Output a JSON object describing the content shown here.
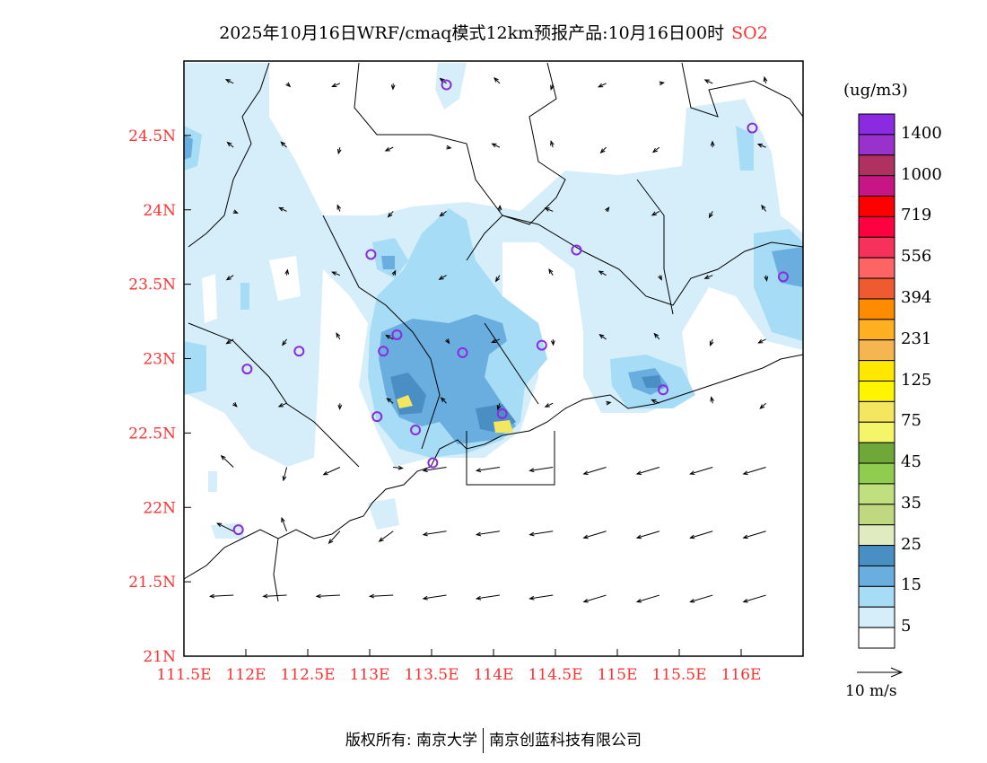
{
  "title": {
    "main": "2025年10月16日WRF/cmaq模式12km预报产品:10月16日00时",
    "species": "SO2"
  },
  "chart_data": {
    "type": "heatmap",
    "title": "2025年10月16日WRF/cmaq模式12km预报产品:10月16日00时 SO2",
    "x_ticks": [
      "111.5E",
      "112E",
      "112.5E",
      "113E",
      "113.5E",
      "114E",
      "114.5E",
      "115E",
      "115.5E",
      "116E"
    ],
    "y_ticks": [
      "21N",
      "21.5N",
      "22N",
      "22.5N",
      "23N",
      "23.5N",
      "24N",
      "24.5N"
    ],
    "xlim": [
      111.5,
      116.5
    ],
    "ylim": [
      21,
      25
    ],
    "colorbar": {
      "unit": "(ug/m3)",
      "labels": [
        "1400",
        "1000",
        "719",
        "556",
        "394",
        "231",
        "125",
        "75",
        "45",
        "35",
        "25",
        "15",
        "5"
      ],
      "colors": [
        "#8a2be2",
        "#9932cc",
        "#b03060",
        "#c71585",
        "#ff0000",
        "#ff0040",
        "#f7325a",
        "#ff6464",
        "#f05a30",
        "#ff8c00",
        "#ffb020",
        "#f5b550",
        "#ffe800",
        "#fff500",
        "#f5e660",
        "#f5f56a",
        "#6fa838",
        "#90cc50",
        "#c0e080",
        "#c0d880",
        "#e0ecc0",
        "#4a8fc4",
        "#6aaee0",
        "#a6dcf5",
        "#d6eefa",
        "#ffffff"
      ]
    },
    "wind_reference": "10 m/s",
    "stations": [
      [
        113.62,
        24.84
      ],
      [
        116.09,
        24.55
      ],
      [
        113.01,
        23.7
      ],
      [
        114.67,
        23.73
      ],
      [
        116.34,
        23.55
      ],
      [
        112.43,
        23.05
      ],
      [
        112.01,
        22.93
      ],
      [
        113.22,
        23.16
      ],
      [
        113.11,
        23.05
      ],
      [
        113.75,
        23.04
      ],
      [
        114.39,
        23.09
      ],
      [
        115.37,
        22.79
      ],
      [
        113.06,
        22.61
      ],
      [
        114.07,
        22.63
      ],
      [
        113.37,
        22.52
      ],
      [
        113.51,
        22.3
      ],
      [
        111.94,
        21.85
      ]
    ]
  },
  "footer": {
    "left": "版权所有: 南京大学",
    "right": "南京创蓝科技有限公司"
  }
}
